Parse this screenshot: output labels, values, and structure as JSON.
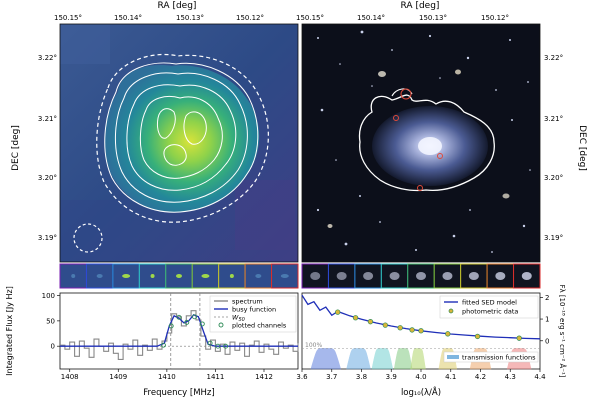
{
  "top_axis": {
    "label": "RA [deg]",
    "ticks": [
      "150.15°",
      "150.14°",
      "150.13°",
      "150.12°"
    ]
  },
  "left_axis": {
    "label": "DEC [deg]",
    "ticks": [
      "3.22°",
      "3.21°",
      "3.20°",
      "3.19°"
    ]
  },
  "right_axis": {
    "label": "DEC [deg]",
    "ticks": [
      "3.22°",
      "3.21°",
      "3.20°",
      "3.19°"
    ]
  },
  "strip_colors": [
    "#7a1fb2",
    "#2c4bd8",
    "#2a8ad8",
    "#2fc7c7",
    "#3fb46a",
    "#7fc23a",
    "#c9c12a",
    "#e07a2a",
    "#d92a2a"
  ],
  "spectrum_panel": {
    "type": "line",
    "xlabel": "Frequency [MHz]",
    "ylabel": "Integrated Flux [Jy Hz]",
    "xlim": [
      1407.8,
      1412.7
    ],
    "ylim": [
      -45,
      105
    ],
    "xticks": [
      "1408",
      "1409",
      "1410",
      "1411",
      "1412"
    ],
    "yticks": [
      "0",
      "50",
      "100"
    ],
    "w50": [
      1410.08,
      1410.68
    ],
    "legend": {
      "spectrum": "spectrum",
      "busy": "busy function",
      "w50": "W",
      "w50_sub": "50",
      "channels": "plotted channels"
    },
    "spectrum_x": [
      1407.8,
      1407.9,
      1408.0,
      1408.1,
      1408.2,
      1408.3,
      1408.4,
      1408.5,
      1408.6,
      1408.7,
      1408.8,
      1408.9,
      1409.0,
      1409.1,
      1409.2,
      1409.3,
      1409.4,
      1409.5,
      1409.6,
      1409.7,
      1409.8,
      1409.9,
      1410.0,
      1410.1,
      1410.2,
      1410.3,
      1410.4,
      1410.5,
      1410.6,
      1410.7,
      1410.8,
      1410.9,
      1411.0,
      1411.1,
      1411.2,
      1411.3,
      1411.4,
      1411.5,
      1411.6,
      1411.7,
      1411.8,
      1411.9,
      1412.0,
      1412.1,
      1412.2,
      1412.3,
      1412.4,
      1412.5,
      1412.6,
      1412.7
    ],
    "spectrum_y": [
      2,
      -6,
      8,
      -20,
      10,
      -4,
      -22,
      14,
      0,
      -10,
      6,
      -14,
      -26,
      4,
      -6,
      12,
      -18,
      2,
      -8,
      14,
      -6,
      10,
      26,
      64,
      58,
      40,
      60,
      70,
      52,
      20,
      -6,
      12,
      -10,
      4,
      -16,
      8,
      -8,
      6,
      -20,
      2,
      10,
      -12,
      4,
      -6,
      -16,
      8,
      -4,
      2,
      -10,
      6
    ],
    "busy_x": [
      1407.8,
      1409.8,
      1409.95,
      1410.05,
      1410.15,
      1410.25,
      1410.35,
      1410.45,
      1410.55,
      1410.65,
      1410.75,
      1410.85,
      1411.0,
      1412.7
    ],
    "busy_y": [
      0,
      0,
      6,
      40,
      60,
      55,
      46,
      50,
      62,
      58,
      30,
      4,
      0,
      0
    ],
    "channels_x": [
      1409.93,
      1410.09,
      1410.25,
      1410.41,
      1410.57,
      1410.73,
      1410.89,
      1411.05,
      1411.21
    ],
    "channels_y": [
      2,
      40,
      57,
      47,
      58,
      44,
      6,
      0,
      0
    ]
  },
  "sed_panel": {
    "type": "line",
    "xlabel": "log₁₀(λ/Å)",
    "ylabel": "Fλ [10⁻¹⁸ erg s⁻¹ cm⁻² Å⁻¹]",
    "xlim": [
      3.6,
      4.4
    ],
    "ylim": [
      -1.3,
      2.2
    ],
    "xticks": [
      "3.6",
      "3.7",
      "3.8",
      "3.9",
      "4.0",
      "4.1",
      "4.2",
      "4.3",
      "4.4"
    ],
    "yticks": [
      "0",
      "1",
      "2"
    ],
    "percent_label": "100%",
    "legend": {
      "model": "fitted SED model",
      "photometric": "photometric data",
      "transmission": "transmission functions"
    },
    "model_x": [
      3.6,
      3.62,
      3.64,
      3.66,
      3.68,
      3.7,
      3.72,
      3.74,
      3.76,
      3.78,
      3.8,
      3.85,
      3.9,
      3.95,
      4.0,
      4.05,
      4.1,
      4.15,
      4.2,
      4.25,
      4.3,
      4.35,
      4.4
    ],
    "model_y": [
      2.1,
      1.95,
      1.8,
      1.68,
      1.55,
      1.45,
      1.35,
      1.25,
      1.15,
      1.07,
      0.99,
      0.82,
      0.68,
      0.56,
      0.46,
      0.38,
      0.31,
      0.26,
      0.21,
      0.17,
      0.14,
      0.11,
      0.09
    ],
    "photometric_x": [
      3.72,
      3.78,
      3.83,
      3.88,
      3.93,
      3.97,
      4.0,
      4.09,
      4.19,
      4.33
    ],
    "photometric_y": [
      1.32,
      1.06,
      0.88,
      0.72,
      0.6,
      0.5,
      0.46,
      0.32,
      0.2,
      0.12
    ],
    "filters": [
      {
        "center": 3.55,
        "width": 0.06,
        "color": "#9a5fd0"
      },
      {
        "center": 3.68,
        "width": 0.1,
        "color": "#6c8ae0"
      },
      {
        "center": 3.79,
        "width": 0.08,
        "color": "#7ab4e6"
      },
      {
        "center": 3.87,
        "width": 0.07,
        "color": "#7fd4d4"
      },
      {
        "center": 3.94,
        "width": 0.06,
        "color": "#8ed08e"
      },
      {
        "center": 3.99,
        "width": 0.05,
        "color": "#b9d97a"
      },
      {
        "center": 4.09,
        "width": 0.06,
        "color": "#e0d27a"
      },
      {
        "center": 4.2,
        "width": 0.07,
        "color": "#f0b07a"
      },
      {
        "center": 4.33,
        "width": 0.08,
        "color": "#ef8a8a"
      }
    ]
  }
}
